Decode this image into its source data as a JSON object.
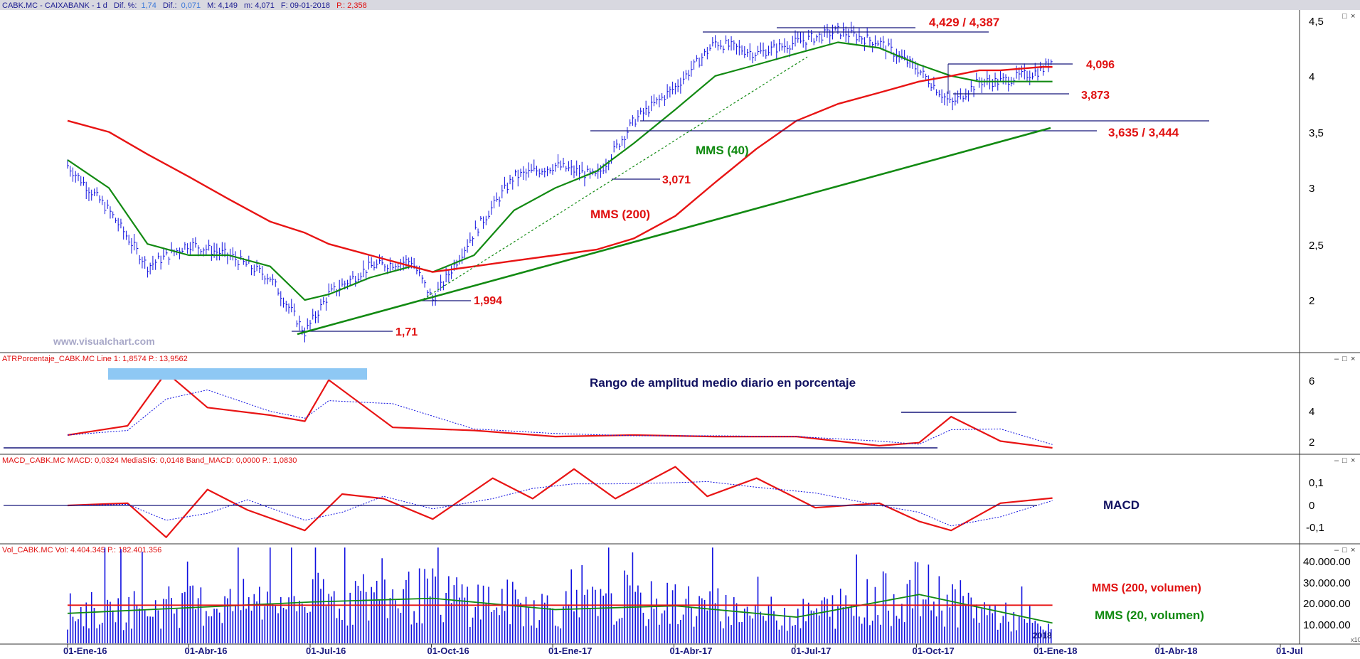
{
  "header": {
    "symbol": "CABK.MC - CAIXABANK - 1 d",
    "dif_pct_label": "Dif. %:",
    "dif_pct_value": "1,74",
    "dif_label": "Dif.:",
    "dif_value": "0,071",
    "max": "M: 4,149",
    "min": "m: 4,071",
    "date": "F: 09-01-2018",
    "price": "P.: 2,358"
  },
  "colors": {
    "bars": "#1010e0",
    "mms40": "#128a12",
    "mms200": "#e81414",
    "line_navy": "#16167a",
    "highlight": "#8ec8f4"
  },
  "icons": [
    "minimize-icon",
    "restore-icon",
    "close-icon"
  ],
  "watermark": "www.visualchart.com",
  "x_axis": {
    "ticks": [
      "01-Ene-16",
      "01-Abr-16",
      "01-Jul-16",
      "01-Oct-16",
      "01-Ene-17",
      "01-Abr-17",
      "01-Jul-17",
      "01-Oct-17",
      "01-Ene-18",
      "01-Abr-18",
      "01-Jul"
    ],
    "partial_end_label": "2018",
    "corner_label": "x10"
  },
  "price_panel": {
    "y_ticks": [
      "4,5",
      "4",
      "3,5",
      "3",
      "2,5",
      "2"
    ],
    "annotations": {
      "top_resistance": "4,429 / 4,387",
      "upper_range": "4,096",
      "lower_range": "3,873",
      "support_zone": "3,635 / 3,444",
      "mms40_label": "MMS (40)",
      "swing_low_3071": "3,071",
      "mms200_label": "MMS (200)",
      "swing_low_1994": "1,994",
      "swing_low_171": "1,71"
    }
  },
  "atr_panel": {
    "title": "ATRPorcentaje_CABK.MC  Line 1: 1,8574  P.: 13,9562",
    "y_ticks": [
      "6",
      "4",
      "2"
    ],
    "caption": "Rango de amplitud medio diario en porcentaje"
  },
  "macd_panel": {
    "title": "MACD_CABK.MC  MACD: 0,0324  MediaSIG: 0,0148  Band_MACD: 0,0000  P.: 1,0830",
    "y_ticks": [
      "0,1",
      "0",
      "-0,1"
    ],
    "caption": "MACD"
  },
  "volume_panel": {
    "title": "Vol_CABK.MC  Vol: 4.404.345  P.: 182.401.356",
    "y_ticks": [
      "40.000.00",
      "30.000.00",
      "20.000.00",
      "10.000.00"
    ],
    "caption_200": "MMS (200, volumen)",
    "caption_20": "MMS (20, volumen)"
  },
  "chart_data": [
    {
      "type": "line",
      "name": "price",
      "x": [
        "2016-01-01",
        "2016-02-01",
        "2016-03-01",
        "2016-04-01",
        "2016-05-01",
        "2016-06-01",
        "2016-06-27",
        "2016-07-15",
        "2016-08-15",
        "2016-09-15",
        "2016-10-01",
        "2016-11-01",
        "2016-12-01",
        "2017-01-01",
        "2017-02-01",
        "2017-03-01",
        "2017-04-01",
        "2017-05-01",
        "2017-06-01",
        "2017-07-01",
        "2017-08-01",
        "2017-09-01",
        "2017-10-01",
        "2017-10-25",
        "2017-11-15",
        "2017-12-01",
        "2018-01-01",
        "2018-01-09"
      ],
      "values": [
        3.2,
        2.8,
        2.3,
        2.5,
        2.4,
        2.2,
        1.71,
        2.05,
        2.3,
        2.35,
        2.0,
        2.6,
        3.1,
        3.2,
        3.1,
        3.6,
        3.9,
        4.3,
        4.2,
        4.3,
        4.4,
        4.3,
        4.05,
        3.75,
        3.95,
        3.95,
        4.05,
        4.149
      ],
      "ylim": [
        1.6,
        4.5
      ],
      "grid": false,
      "series_lines": [
        {
          "values": [
            3.25,
            3.0,
            2.5,
            2.4,
            2.4,
            2.3,
            2.0,
            2.05,
            2.2,
            2.3,
            2.25,
            2.4,
            2.8,
            3.0,
            3.15,
            3.4,
            3.7,
            4.0,
            4.1,
            4.2,
            4.3,
            4.25,
            4.1,
            4.0,
            3.95,
            3.95,
            3.95,
            3.95
          ]
        },
        {
          "values": [
            3.6,
            3.5,
            3.3,
            3.1,
            2.9,
            2.7,
            2.6,
            2.5,
            2.4,
            2.3,
            2.25,
            2.3,
            2.35,
            2.4,
            2.45,
            2.55,
            2.75,
            3.05,
            3.35,
            3.6,
            3.75,
            3.85,
            3.95,
            4.0,
            4.05,
            4.05,
            4.08,
            4.08
          ]
        }
      ]
    },
    {
      "type": "line",
      "name": "atr",
      "x": [
        "2016-01-01",
        "2016-02-15",
        "2016-03-15",
        "2016-04-15",
        "2016-06-01",
        "2016-06-27",
        "2016-07-15",
        "2016-09-01",
        "2016-11-01",
        "2017-01-01",
        "2017-03-01",
        "2017-05-01",
        "2017-07-01",
        "2017-09-01",
        "2017-10-01",
        "2017-10-25",
        "2017-12-01",
        "2018-01-09"
      ],
      "values": [
        2.7,
        3.3,
        6.8,
        4.5,
        4.0,
        3.6,
        6.3,
        3.2,
        3.0,
        2.6,
        2.7,
        2.6,
        2.6,
        2.0,
        2.2,
        3.9,
        2.3,
        1.86
      ],
      "ylim": [
        1.5,
        7
      ]
    },
    {
      "type": "line",
      "name": "macd",
      "x": [
        "2016-01-01",
        "2016-02-15",
        "2016-03-15",
        "2016-04-15",
        "2016-05-15",
        "2016-06-27",
        "2016-07-25",
        "2016-08-25",
        "2016-10-01",
        "2016-11-15",
        "2016-12-15",
        "2017-01-15",
        "2017-02-15",
        "2017-04-01",
        "2017-04-25",
        "2017-06-01",
        "2017-07-15",
        "2017-09-01",
        "2017-10-01",
        "2017-10-25",
        "2017-12-01",
        "2018-01-09"
      ],
      "values": [
        0.0,
        0.01,
        -0.14,
        0.07,
        -0.02,
        -0.11,
        0.05,
        0.03,
        -0.06,
        0.12,
        0.03,
        0.16,
        0.03,
        0.17,
        0.04,
        0.12,
        -0.01,
        0.01,
        -0.07,
        -0.11,
        0.01,
        0.0324
      ],
      "ylim": [
        -0.17,
        0.17
      ]
    },
    {
      "type": "bar",
      "name": "volume",
      "x": [
        "2016-01-01",
        "2016-04-01",
        "2016-07-01",
        "2016-10-01",
        "2017-01-01",
        "2017-04-01",
        "2017-07-01",
        "2017-10-01",
        "2018-01-09"
      ],
      "values": [
        14000000,
        17000000,
        20000000,
        22000000,
        16000000,
        18000000,
        12000000,
        24000000,
        4404345
      ],
      "ylim": [
        0,
        45000000
      ]
    }
  ]
}
